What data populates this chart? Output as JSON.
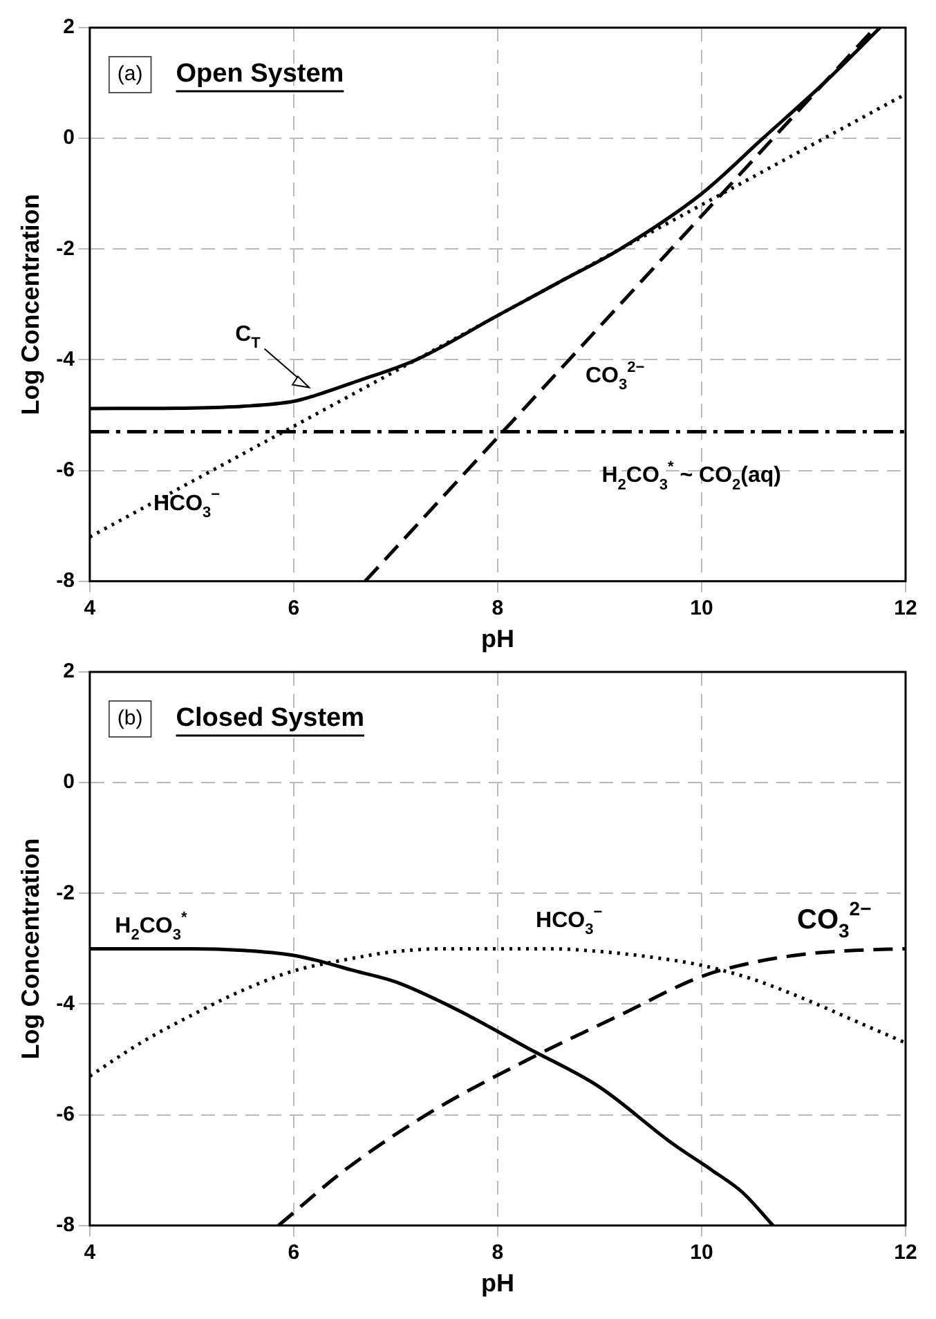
{
  "chart_data": [
    {
      "type": "line",
      "title": "Open System",
      "xlabel": "pH",
      "ylabel": "Log Concentration",
      "xlim": [
        4,
        12
      ],
      "ylim": [
        -8,
        2
      ],
      "xticks": [
        4,
        6,
        8,
        10,
        12
      ],
      "yticks": [
        -8,
        -6,
        -4,
        -2,
        0,
        2
      ],
      "grid": true,
      "marker": "none",
      "annotations": [
        "(a)"
      ],
      "series": [
        {
          "name": "C$_{T}$",
          "color": "#000000",
          "line_style": "solid",
          "x": [
            4,
            5,
            5.5,
            6,
            6.2,
            6.6,
            7.2,
            8,
            8.6,
            9.2,
            10,
            10.6,
            11.2,
            11.75
          ],
          "values": [
            -4.88,
            -4.87,
            -4.84,
            -4.75,
            -4.65,
            -4.4,
            -4,
            -3.2,
            -2.6,
            -2,
            -1,
            0,
            1,
            2
          ]
        },
        {
          "name": "HCO$_{3}$$^{−}$",
          "color": "#000000",
          "line_style": "dotted",
          "x": [
            4,
            12
          ],
          "values": [
            -7.2,
            0.8
          ]
        },
        {
          "name": "CO$_{3}$$^{2−}$",
          "color": "#000000",
          "line_style": "dashed",
          "x": [
            6.7,
            11.7
          ],
          "values": [
            -8,
            2
          ]
        },
        {
          "name": "H$_{2}$CO$_{3}$$^{*}$ ~ CO$_{2}$(aq)",
          "color": "#000000",
          "line_style": "dashdot",
          "x": [
            4,
            12
          ],
          "values": [
            -5.3,
            -5.3
          ]
        }
      ]
    },
    {
      "type": "line",
      "title": "Closed System",
      "xlabel": "pH",
      "ylabel": "Log Concentration",
      "xlim": [
        4,
        12
      ],
      "ylim": [
        -8,
        2
      ],
      "xticks": [
        4,
        6,
        8,
        10,
        12
      ],
      "yticks": [
        -8,
        -6,
        -4,
        -2,
        0,
        2
      ],
      "grid": true,
      "marker": "none",
      "annotations": [
        "(b)"
      ],
      "series": [
        {
          "name": "H$_{2}$CO$_{3}$$^{*}$",
          "color": "#000000",
          "line_style": "solid",
          "x": [
            4,
            5,
            5.5,
            6,
            6.2,
            6.6,
            7,
            7.6,
            8.3,
            9,
            9.7,
            10.1,
            10.4,
            10.7
          ],
          "values": [
            -3,
            -3,
            -3.03,
            -3.12,
            -3.2,
            -3.4,
            -3.6,
            -4.1,
            -4.8,
            -5.5,
            -6.5,
            -7,
            -7.4,
            -8
          ]
        },
        {
          "name": "HCO$_{3}$$^{−}$",
          "color": "#000000",
          "line_style": "dotted",
          "x": [
            4,
            4.5,
            5,
            5.5,
            6,
            6.5,
            7,
            7.5,
            8,
            8.5,
            9,
            9.5,
            10,
            10.5,
            11,
            11.5,
            12
          ],
          "values": [
            -5.3,
            -4.7,
            -4.2,
            -3.75,
            -3.4,
            -3.2,
            -3.05,
            -3,
            -3,
            -3,
            -3.05,
            -3.15,
            -3.3,
            -3.55,
            -3.9,
            -4.3,
            -4.7
          ]
        },
        {
          "name": "CO$_{3}$$^{2−}$",
          "color": "#000000",
          "line_style": "dashed",
          "x": [
            5.85,
            6.5,
            7.3,
            8.3,
            9.2,
            10,
            10.5,
            11,
            11.5,
            12
          ],
          "values": [
            -8,
            -7,
            -6,
            -5,
            -4.2,
            -3.5,
            -3.25,
            -3.1,
            -3.03,
            -3
          ]
        }
      ]
    }
  ]
}
